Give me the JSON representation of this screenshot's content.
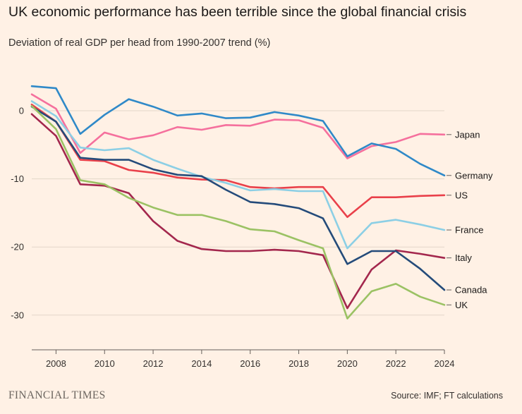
{
  "title": "UK economic performance has been terrible since the global financial crisis",
  "subtitle": "Deviation of real GDP per head from 1990-2007 trend (%)",
  "brand": "FINANCIAL TIMES",
  "source": "Source: IMF; FT calculations",
  "chart_data": {
    "type": "line",
    "title": "UK economic performance has been terrible since the global financial crisis",
    "ylabel": "Deviation of real GDP per head from 1990-2007 trend (%)",
    "xlabel": "",
    "xlim": [
      2007,
      2024
    ],
    "ylim": [
      -35,
      5
    ],
    "x_ticks": [
      2008,
      2010,
      2012,
      2014,
      2016,
      2018,
      2020,
      2022,
      2024
    ],
    "y_ticks": [
      0,
      -10,
      -20,
      -30
    ],
    "y_tick_labels": [
      "0",
      "-10",
      "-20",
      "-30"
    ],
    "x": [
      2007,
      2008,
      2009,
      2010,
      2011,
      2012,
      2013,
      2014,
      2015,
      2016,
      2017,
      2018,
      2019,
      2020,
      2021,
      2022,
      2023,
      2024
    ],
    "series": [
      {
        "name": "Japan",
        "color": "#f5709d",
        "values": [
          2.4,
          0.3,
          -6.2,
          -3.2,
          -4.2,
          -3.6,
          -2.4,
          -2.8,
          -2.1,
          -2.2,
          -1.3,
          -1.4,
          -2.5,
          -7.0,
          -5.2,
          -4.6,
          -3.4,
          -3.5
        ]
      },
      {
        "name": "Germany",
        "color": "#2f89c8",
        "values": [
          3.6,
          3.3,
          -3.4,
          -0.6,
          1.7,
          0.6,
          -0.7,
          -0.4,
          -1.1,
          -1.0,
          -0.2,
          -0.7,
          -1.5,
          -6.7,
          -4.8,
          -5.6,
          -7.8,
          -9.5
        ]
      },
      {
        "name": "US",
        "color": "#e9404a",
        "values": [
          0.9,
          -1.6,
          -7.2,
          -7.4,
          -8.7,
          -9.1,
          -9.8,
          -10.1,
          -10.2,
          -11.2,
          -11.4,
          -11.2,
          -11.2,
          -15.6,
          -12.7,
          -12.7,
          -12.5,
          -12.4
        ]
      },
      {
        "name": "France",
        "color": "#8ccfe5",
        "values": [
          1.4,
          -0.8,
          -5.4,
          -5.8,
          -5.5,
          -7.2,
          -8.5,
          -9.7,
          -10.6,
          -11.7,
          -11.5,
          -11.8,
          -11.8,
          -20.2,
          -16.5,
          -16.0,
          -16.7,
          -17.5
        ]
      },
      {
        "name": "Italy",
        "color": "#a3274d",
        "values": [
          -0.5,
          -3.7,
          -10.8,
          -11.0,
          -12.1,
          -16.2,
          -19.1,
          -20.3,
          -20.6,
          -20.6,
          -20.4,
          -20.6,
          -21.2,
          -29.0,
          -23.3,
          -20.5,
          -21.0,
          -21.6
        ]
      },
      {
        "name": "Canada",
        "color": "#244b7a",
        "values": [
          0.6,
          -1.6,
          -6.9,
          -7.2,
          -7.2,
          -8.6,
          -9.4,
          -9.6,
          -11.6,
          -13.4,
          -13.7,
          -14.3,
          -15.8,
          -22.5,
          -20.6,
          -20.6,
          -23.2,
          -26.3
        ]
      },
      {
        "name": "UK",
        "color": "#9bc264",
        "values": [
          0.7,
          -2.7,
          -10.2,
          -10.8,
          -12.8,
          -14.2,
          -15.3,
          -15.3,
          -16.2,
          -17.4,
          -17.7,
          -19.0,
          -20.2,
          -30.5,
          -26.5,
          -25.4,
          -27.3,
          -28.5
        ]
      }
    ],
    "legend": [
      {
        "name": "Japan",
        "anchor_value": -3.5
      },
      {
        "name": "Germany",
        "anchor_value": -9.5
      },
      {
        "name": "US",
        "anchor_value": -12.4
      },
      {
        "name": "France",
        "anchor_value": -17.5
      },
      {
        "name": "Italy",
        "anchor_value": -21.6
      },
      {
        "name": "Canada",
        "anchor_value": -26.3
      },
      {
        "name": "UK",
        "anchor_value": -28.5
      }
    ],
    "legend_placement": "right",
    "grid": true
  }
}
